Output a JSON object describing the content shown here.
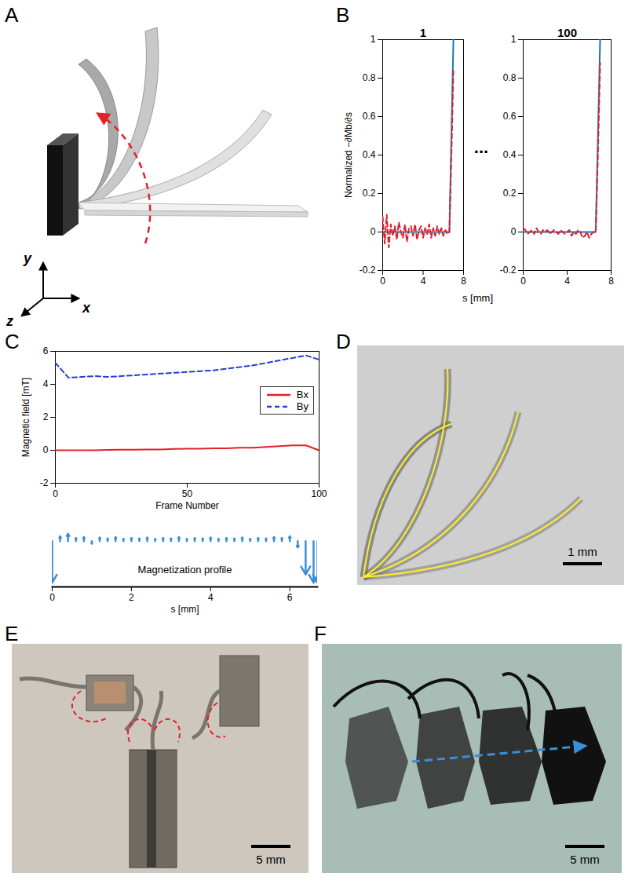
{
  "chart_data": [
    {
      "type": "line",
      "title": "1",
      "ylabel": "Normalized −∂Mb/∂s",
      "xlim": [
        0,
        8
      ],
      "xticks": [
        0,
        4,
        8
      ],
      "ylim": [
        -0.2,
        1
      ],
      "yticks": [
        -0.2,
        0,
        0.2,
        0.4,
        0.6,
        0.8,
        1
      ],
      "series": [
        {
          "color": "#1f77b4",
          "line_style": "solid",
          "x": [
            0,
            6.6,
            7
          ],
          "values": [
            0,
            0,
            1
          ]
        },
        {
          "color": "#e4202a",
          "line_style": "dashed",
          "x": [
            0,
            0.2,
            0.4,
            0.6,
            0.8,
            1,
            1.2,
            1.4,
            1.6,
            1.8,
            2,
            2.2,
            2.4,
            2.6,
            2.8,
            3,
            3.2,
            3.4,
            3.6,
            3.8,
            4,
            4.2,
            4.4,
            4.6,
            4.8,
            5,
            5.2,
            5.4,
            5.6,
            5.8,
            6,
            6.2,
            6.4,
            6.6,
            6.8,
            7
          ],
          "values": [
            0.08,
            -0.06,
            0.09,
            -0.08,
            0.04,
            -0.02,
            0.03,
            -0.04,
            0.05,
            0.0,
            -0.03,
            0.04,
            -0.05,
            0.02,
            0.03,
            -0.02,
            0.04,
            -0.04,
            0.01,
            0.03,
            -0.03,
            0.02,
            -0.01,
            0.04,
            -0.03,
            0.02,
            -0.02,
            0.03,
            -0.01,
            0.02,
            -0.02,
            0.01,
            -0.01,
            0.0,
            0.4,
            0.85
          ]
        }
      ]
    },
    {
      "type": "line",
      "title": "100",
      "xlim": [
        0,
        8
      ],
      "xticks": [
        0,
        4,
        8
      ],
      "ylim": [
        -0.2,
        1
      ],
      "yticks": [
        -0.2,
        0,
        0.2,
        0.4,
        0.6,
        0.8,
        1
      ],
      "series": [
        {
          "color": "#1f77b4",
          "line_style": "solid",
          "x": [
            0,
            6.6,
            7
          ],
          "values": [
            0,
            0,
            1
          ]
        },
        {
          "color": "#e4202a",
          "line_style": "dashed",
          "x": [
            0,
            0.2,
            0.4,
            0.6,
            0.8,
            1,
            1.2,
            1.4,
            1.6,
            1.8,
            2,
            2.2,
            2.4,
            2.6,
            2.8,
            3,
            3.2,
            3.4,
            3.6,
            3.8,
            4,
            4.2,
            4.4,
            4.6,
            4.8,
            5,
            5.2,
            5.4,
            5.6,
            5.8,
            6,
            6.2,
            6.4,
            6.6,
            6.8,
            7
          ],
          "values": [
            0.02,
            0.01,
            -0.01,
            0.0,
            0.01,
            -0.01,
            0.02,
            0.0,
            -0.01,
            0.01,
            0.0,
            0.01,
            -0.01,
            0.0,
            0.01,
            0.0,
            -0.01,
            0.01,
            0.0,
            -0.01,
            0.0,
            0.01,
            -0.02,
            0.0,
            -0.01,
            0.01,
            0.0,
            -0.03,
            -0.02,
            0.0,
            -0.03,
            -0.01,
            0.0,
            0.0,
            0.4,
            0.88
          ]
        }
      ]
    },
    {
      "type": "line",
      "xlabel": "Frame Number",
      "ylabel": "Magnetic field [mT]",
      "x": [
        0,
        5,
        10,
        15,
        20,
        25,
        30,
        35,
        40,
        45,
        50,
        55,
        60,
        65,
        70,
        75,
        80,
        85,
        90,
        95,
        100
      ],
      "xlim": [
        0,
        100
      ],
      "xticks": [
        0,
        50,
        100
      ],
      "ylim": [
        -2,
        6
      ],
      "yticks": [
        -2,
        0,
        2,
        4,
        6
      ],
      "legend": "right",
      "series": [
        {
          "name": "Bx",
          "color": "#e4202a",
          "line_style": "solid",
          "values": [
            0,
            0,
            0,
            0,
            0.02,
            0.03,
            0.03,
            0.05,
            0.05,
            0.08,
            0.1,
            0.1,
            0.12,
            0.12,
            0.15,
            0.15,
            0.2,
            0.25,
            0.3,
            0.3,
            0
          ]
        },
        {
          "name": "By",
          "color": "#1f3fd6",
          "line_style": "dashed",
          "values": [
            5.3,
            4.4,
            4.45,
            4.5,
            4.45,
            4.5,
            4.55,
            4.6,
            4.65,
            4.7,
            4.75,
            4.8,
            4.85,
            4.95,
            5.05,
            5.15,
            5.3,
            5.45,
            5.6,
            5.75,
            5.5
          ]
        }
      ]
    },
    {
      "type": "quiver",
      "title": "Magnetization profile",
      "xlabel": "s [mm]",
      "x": [
        0,
        0.2,
        0.4,
        0.6,
        0.8,
        1,
        1.2,
        1.4,
        1.6,
        1.8,
        2,
        2.2,
        2.4,
        2.6,
        2.8,
        3,
        3.2,
        3.4,
        3.6,
        3.8,
        4,
        4.2,
        4.4,
        4.6,
        4.8,
        5,
        5.2,
        5.4,
        5.6,
        5.8,
        6,
        6.2,
        6.4,
        6.6,
        6.7
      ],
      "values": [
        -1.0,
        0.12,
        0.18,
        0.08,
        0.1,
        -0.06,
        0.09,
        0.07,
        0.1,
        0.06,
        0.08,
        0.07,
        0.09,
        0.06,
        0.08,
        0.07,
        0.1,
        0.06,
        0.08,
        0.07,
        0.09,
        0.06,
        0.08,
        0.07,
        0.09,
        0.06,
        0.08,
        0.07,
        0.1,
        0.08,
        0.12,
        -0.15,
        -0.8,
        -1.0,
        -1.0
      ],
      "color": "#3a8fd9",
      "xlim": [
        0,
        6.7
      ],
      "xticks": [
        0,
        2,
        4,
        6
      ],
      "ylim": [
        -1.1,
        0.3
      ],
      "tick_labels": "x"
    }
  ],
  "figure": {
    "panels": [
      {
        "label": "A",
        "axes": [
          "x",
          "y",
          "z"
        ]
      },
      {
        "label": "B",
        "ellipsis": "...",
        "xlabel": "s [mm]"
      },
      {
        "label": "C"
      },
      {
        "label": "D",
        "scale_bar": "1 mm"
      },
      {
        "label": "E",
        "scale_bar": "5 mm"
      },
      {
        "label": "F",
        "scale_bar": "5 mm"
      }
    ]
  }
}
